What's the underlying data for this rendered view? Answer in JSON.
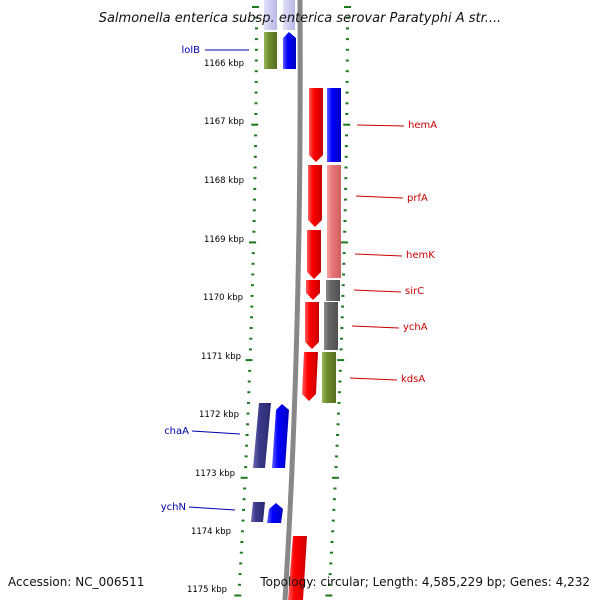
{
  "title": "Salmonella enterica subsp. enterica serovar Paratyphi A str....",
  "footer": {
    "accession": "Accession: NC_006511",
    "summary": "Topology: circular; Length: 4,585,229 bp; Genes: 4,232"
  },
  "colors": {
    "tick": "#1a7a1a",
    "backbone": "#888888",
    "label_left": "#0000aa",
    "label_right": "#cc0000",
    "red": "#ff0000",
    "pink": "#e87878",
    "blue": "#0000ff",
    "navy": "#3a3a8c",
    "olive": "#6e8e2e",
    "gray": "#666666"
  },
  "kbp_ticks": [
    "1166 kbp",
    "1167 kbp",
    "1168 kbp",
    "1169 kbp",
    "1170 kbp",
    "1171 kbp",
    "1172 kbp",
    "1173 kbp",
    "1174 kbp",
    "1175 kbp"
  ],
  "gene_labels_left": [
    "lolB",
    "chaA",
    "ychN"
  ],
  "gene_labels_right": [
    "hemA",
    "prfA",
    "hemK",
    "sirC",
    "ychA",
    "kdsA"
  ]
}
